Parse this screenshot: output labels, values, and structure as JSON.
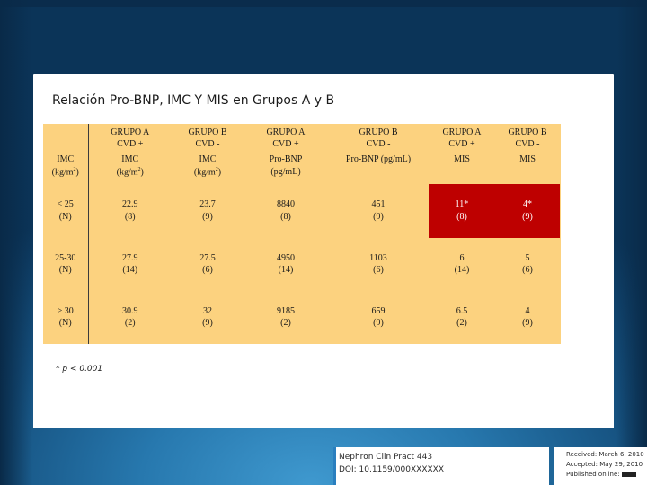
{
  "slide": {
    "title": "Relación Pro-BNP, IMC Y MIS en Grupos A y B",
    "footnote": "* p < 0.001"
  },
  "table": {
    "header": [
      {
        "line1": "",
        "line2": ""
      },
      {
        "line1": "GRUPO A",
        "line2": "CVD +"
      },
      {
        "line1": "GRUPO B",
        "line2": "CVD -"
      },
      {
        "line1": "GRUPO A",
        "line2": "CVD +"
      },
      {
        "line1": "GRUPO B",
        "line2": "CVD -"
      },
      {
        "line1": "GRUPO A",
        "line2": "CVD +"
      },
      {
        "line1": "GRUPO B",
        "line2": "CVD -"
      }
    ],
    "units": [
      {
        "line1": "IMC",
        "line2": "(kg/m",
        "sup": "2",
        "line2_end": ")"
      },
      {
        "line1": "IMC",
        "line2": "(kg/m",
        "sup": "2",
        "line2_end": ")"
      },
      {
        "line1": "IMC",
        "line2": "(kg/m",
        "sup": "2",
        "line2_end": ")"
      },
      {
        "line1": "Pro-BNP",
        "line2": "(pg/mL)",
        "sup": "",
        "line2_end": ""
      },
      {
        "line1": "Pro-BNP (pg/mL)",
        "line2": "",
        "sup": "",
        "line2_end": ""
      },
      {
        "line1": "MIS",
        "line2": "",
        "sup": "",
        "line2_end": ""
      },
      {
        "line1": "MIS",
        "line2": "",
        "sup": "",
        "line2_end": ""
      }
    ],
    "rows": [
      {
        "label": "< 25",
        "n": "(N)",
        "cells": [
          {
            "value": "22.9",
            "n": "(8)"
          },
          {
            "value": "23.7",
            "n": "(9)"
          },
          {
            "value": "8840",
            "n": "(8)"
          },
          {
            "value": "451",
            "n": "(9)"
          },
          {
            "value": "11*",
            "n": "(8)"
          },
          {
            "value": "4*",
            "n": "(9)"
          }
        ]
      },
      {
        "label": "25-30",
        "n": "(N)",
        "cells": [
          {
            "value": "27.9",
            "n": "(14)"
          },
          {
            "value": "27.5",
            "n": "(6)"
          },
          {
            "value": "4950",
            "n": "(14)"
          },
          {
            "value": "1103",
            "n": "(6)"
          },
          {
            "value": "6",
            "n": "(14)"
          },
          {
            "value": "5",
            "n": "(6)"
          }
        ]
      },
      {
        "label": "> 30",
        "n": "(N)",
        "cells": [
          {
            "value": "30.9",
            "n": "(2)"
          },
          {
            "value": "32",
            "n": "(9)"
          },
          {
            "value": "9185",
            "n": "(2)"
          },
          {
            "value": "659",
            "n": "(9)"
          },
          {
            "value": "6.5",
            "n": "(2)"
          },
          {
            "value": "4",
            "n": "(9)"
          }
        ]
      }
    ],
    "colors": {
      "cell_background": "#fcd27f",
      "highlight": "#be0000"
    }
  },
  "journal": {
    "name": "Nephron Clin Pract 443",
    "doi": "DOI: 10.1159/000XXXXXX"
  },
  "dates": {
    "received": "Received: March 6, 2010",
    "accepted": "Accepted: May 29, 2010",
    "published": "Published online:"
  }
}
